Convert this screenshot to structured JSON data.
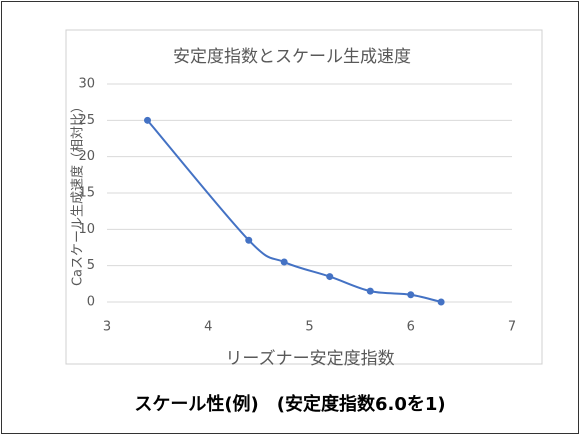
{
  "chart_data": {
    "type": "line",
    "title": "安定度指数とスケール生成速度",
    "xlabel": "リーズナー安定度指数",
    "ylabel": "Caスケール生成速度（相対比）",
    "x": [
      3.4,
      4.4,
      4.75,
      5.2,
      5.6,
      6.0,
      6.3
    ],
    "series": [
      {
        "color": "#4472c4",
        "values": [
          25,
          8.5,
          5.5,
          3.5,
          1.5,
          1.0,
          0
        ]
      }
    ],
    "xlim": [
      3,
      7
    ],
    "xticks": [
      3,
      4,
      5,
      6,
      7
    ],
    "ylim": [
      0,
      30
    ],
    "yticks": [
      0,
      5,
      10,
      15,
      20,
      25,
      30
    ],
    "grid": true,
    "smooth": true
  },
  "caption": "スケール性(例)　(安定度指数6.0を1)"
}
